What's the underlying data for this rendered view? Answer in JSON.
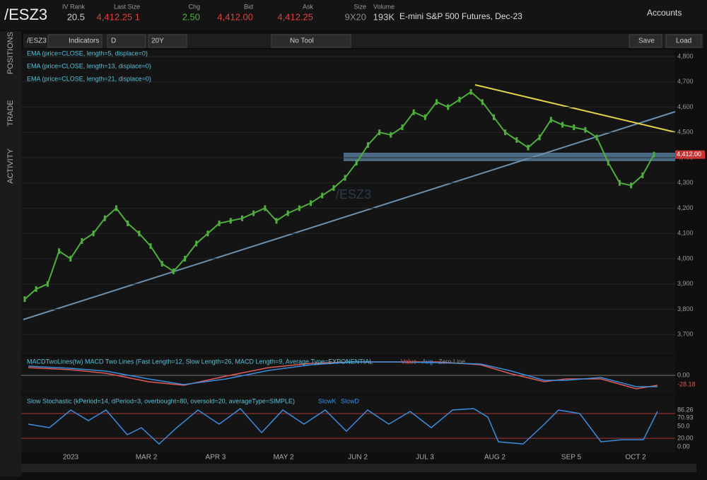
{
  "header": {
    "symbol": "/ESZ3",
    "fields": [
      {
        "label": "IV Rank",
        "value": "20.5"
      },
      {
        "label": "Last Size",
        "value": "4,412.25 1"
      },
      {
        "label": "Chg",
        "value": "2.50"
      },
      {
        "label": "Bid",
        "value": "4,412.00"
      },
      {
        "label": "Ask",
        "value": "4,412.25"
      },
      {
        "label": "Size",
        "value": "9X20"
      },
      {
        "label": "Volume",
        "value": "193K"
      }
    ],
    "description": "E-mini S&P 500 Futures, Dec-23",
    "accounts": "Accounts"
  },
  "sidebar": {
    "tabs": [
      "POSITIONS",
      "TRADE",
      "ACTIVITY"
    ]
  },
  "toolbar": {
    "symbol": "/ESZ3",
    "indicators": "Indicators",
    "period": "D",
    "range": "20Y",
    "tool": "No Tool",
    "save": "Save",
    "load": "Load"
  },
  "price_chart": {
    "watermark": "/ESZ3",
    "studies": [
      "EMA (price=CLOSE, length=5, displace=0)",
      "EMA (price=CLOSE, length=13, displace=0)",
      "EMA (price=CLOSE, length=21, displace=0)"
    ],
    "ylim": [
      3625,
      4828
    ],
    "yticks": [
      {
        "value": 3700,
        "label": "3,700"
      },
      {
        "value": 3800,
        "label": "3,800"
      },
      {
        "value": 3900,
        "label": "3,900"
      },
      {
        "value": 4000,
        "label": "4,000"
      },
      {
        "value": 4100,
        "label": "4,100"
      },
      {
        "value": 4200,
        "label": "4,200"
      },
      {
        "value": 4300,
        "label": "4,300"
      },
      {
        "value": 4400,
        "label": "4,400"
      },
      {
        "value": 4500,
        "label": "4,500"
      },
      {
        "value": 4600,
        "label": "4,600"
      },
      {
        "value": 4700,
        "label": "4,700"
      },
      {
        "value": 4800,
        "label": "4,800"
      }
    ],
    "last_price": {
      "value": 4412,
      "label": "4,412.00"
    },
    "closes": [
      3840,
      3880,
      3900,
      4030,
      4000,
      4070,
      4100,
      4160,
      4200,
      4140,
      4100,
      4050,
      3980,
      3950,
      4000,
      4060,
      4100,
      4140,
      4150,
      4160,
      4180,
      4200,
      4150,
      4180,
      4200,
      4220,
      4250,
      4280,
      4320,
      4380,
      4450,
      4500,
      4490,
      4520,
      4580,
      4560,
      4620,
      4600,
      4630,
      4660,
      4620,
      4560,
      4500,
      4470,
      4440,
      4480,
      4550,
      4530,
      4520,
      4510,
      4480,
      4380,
      4300,
      4290,
      4330,
      4412
    ],
    "color": "#4fae3c",
    "xtick_labels": [
      "2023",
      "MAR 2",
      "APR 3",
      "MAY 2",
      "JUN 2",
      "JUL 3",
      "AUG 2",
      "SEP 5",
      "OCT 2"
    ]
  },
  "macd": {
    "title": "MACDTwoLines(tw) MACD Two Lines (Fast Length=12, Slow Length=26, MACD Length=9, Average Type=EXPONENTIAL",
    "legend": [
      "Value",
      "Avg",
      "Zero Line"
    ],
    "labels": [
      "0.00",
      "-28.18"
    ]
  },
  "stochastic": {
    "title": "Slow Stochastic (kPeriod=14, dPeriod=3, overbought=80, oversold=20, averageType=SIMPLE)",
    "legend": [
      "SlowK",
      "SlowD"
    ],
    "labels": [
      "86.26",
      "70.93",
      "50.0",
      "20.00",
      "0.00"
    ]
  }
}
